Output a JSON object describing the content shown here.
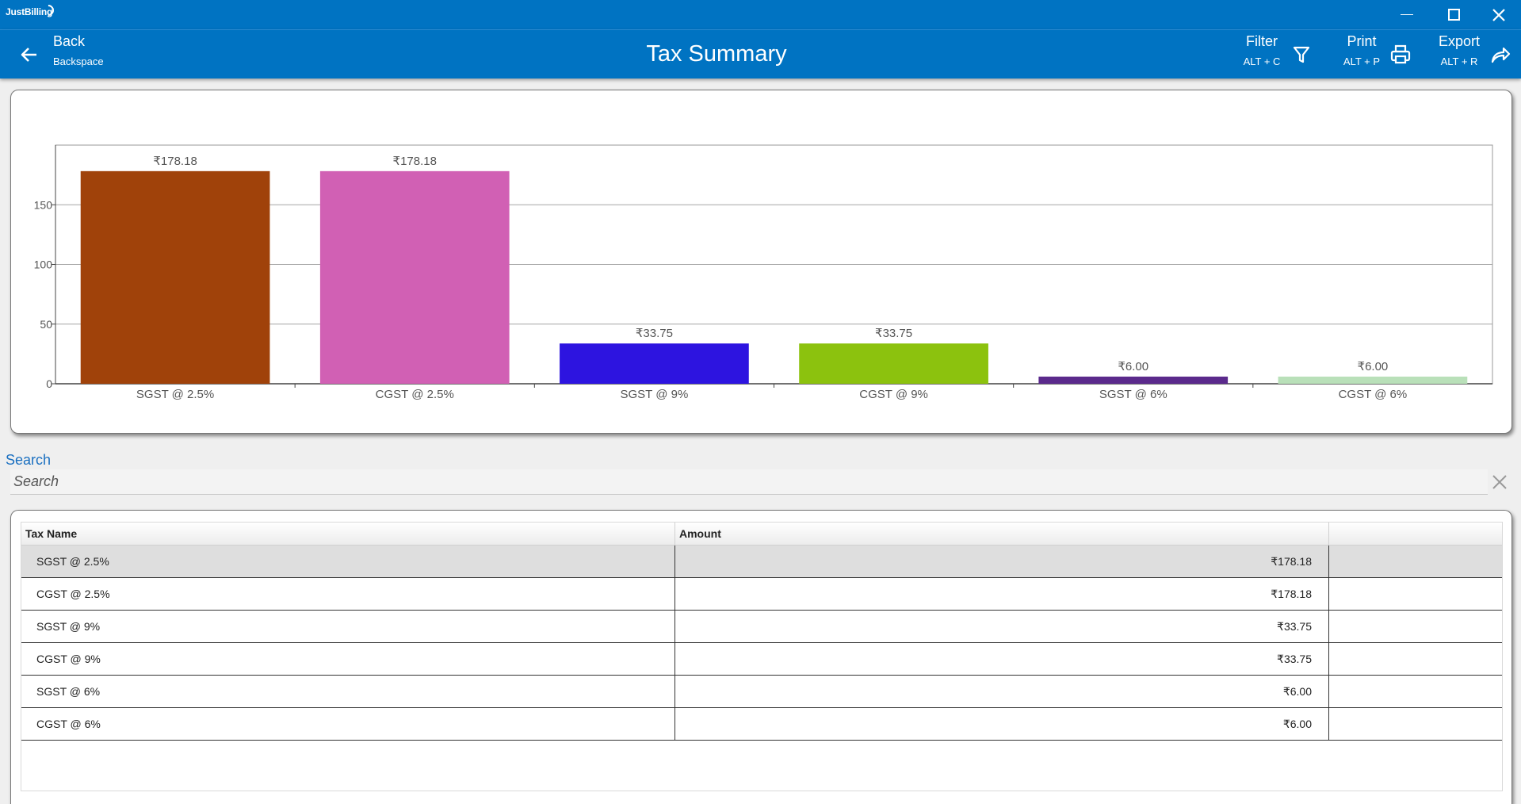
{
  "app": {
    "logo_text": "JustBilling"
  },
  "header": {
    "back_label": "Back",
    "back_shortcut": "Backspace",
    "title": "Tax Summary",
    "filter_label": "Filter",
    "filter_shortcut": "ALT + C",
    "print_label": "Print",
    "print_shortcut": "ALT + P",
    "export_label": "Export",
    "export_shortcut": "ALT + R"
  },
  "chart_data": {
    "type": "bar",
    "categories": [
      "SGST @ 2.5%",
      "CGST @ 2.5%",
      "SGST @ 9%",
      "CGST @ 9%",
      "SGST @ 6%",
      "CGST @ 6%"
    ],
    "values": [
      178.18,
      178.18,
      33.75,
      33.75,
      6.0,
      6.0
    ],
    "data_labels": [
      "₹178.18",
      "₹178.18",
      "₹33.75",
      "₹33.75",
      "₹6.00",
      "₹6.00"
    ],
    "colors": [
      "#a0420a",
      "#d160b4",
      "#2d14e0",
      "#8cc20e",
      "#5b2a8c",
      "#b9e0b9"
    ],
    "yticks": [
      0,
      50,
      100,
      150
    ],
    "ylim": [
      0,
      200
    ],
    "grid": true,
    "title": "",
    "xlabel": "",
    "ylabel": ""
  },
  "search": {
    "label": "Search",
    "placeholder": "Search",
    "value": ""
  },
  "table": {
    "columns": [
      "Tax Name",
      "Amount",
      ""
    ],
    "rows": [
      {
        "name": "SGST @ 2.5%",
        "amount": "₹178.18"
      },
      {
        "name": "CGST @ 2.5%",
        "amount": "₹178.18"
      },
      {
        "name": "SGST @ 9%",
        "amount": "₹33.75"
      },
      {
        "name": "CGST @ 9%",
        "amount": "₹33.75"
      },
      {
        "name": "SGST @ 6%",
        "amount": "₹6.00"
      },
      {
        "name": "CGST @ 6%",
        "amount": "₹6.00"
      }
    ],
    "selected_row": 0
  }
}
